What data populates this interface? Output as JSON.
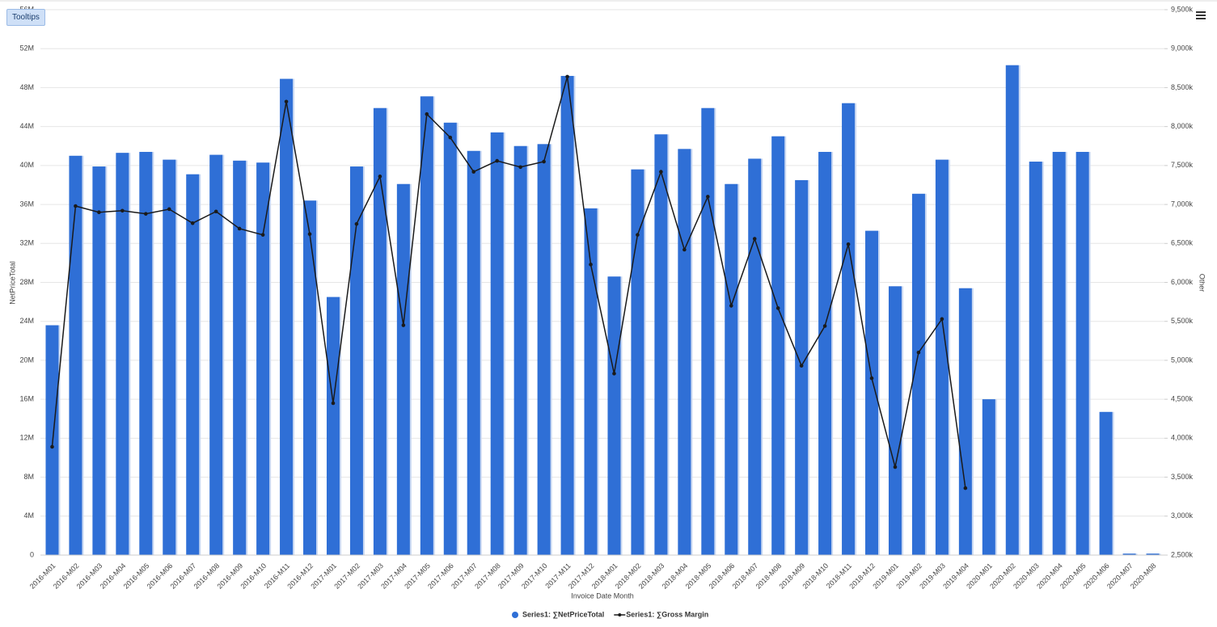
{
  "toolbar": {
    "button": "Tooltips"
  },
  "chart_data": {
    "type": "combo",
    "xlabel": "Invoice Date Month",
    "ylabel": "NetPriceTotal",
    "y2label": "Other",
    "categories": [
      "2016-M01",
      "2016-M02",
      "2016-M03",
      "2016-M04",
      "2016-M05",
      "2016-M06",
      "2016-M07",
      "2016-M08",
      "2016-M09",
      "2016-M10",
      "2016-M11",
      "2016-M12",
      "2017-M01",
      "2017-M02",
      "2017-M03",
      "2017-M04",
      "2017-M05",
      "2017-M06",
      "2017-M07",
      "2017-M08",
      "2017-M09",
      "2017-M10",
      "2017-M11",
      "2017-M12",
      "2018-M01",
      "2018-M02",
      "2018-M03",
      "2018-M04",
      "2018-M05",
      "2018-M06",
      "2018-M07",
      "2018-M08",
      "2018-M09",
      "2018-M10",
      "2018-M11",
      "2018-M12",
      "2019-M01",
      "2019-M02",
      "2019-M03",
      "2019-M04",
      "2020-M01",
      "2020-M02",
      "2020-M03",
      "2020-M04",
      "2020-M05",
      "2020-M06",
      "2020-M07",
      "2020-M08"
    ],
    "series": [
      {
        "name": "Series1: ∑NetPriceTotal",
        "type": "bar",
        "color": "#2f6fd6",
        "values": [
          23600000,
          41000000,
          39900000,
          41300000,
          41400000,
          40600000,
          39100000,
          41100000,
          40500000,
          40300000,
          48900000,
          36400000,
          26500000,
          39900000,
          45900000,
          38100000,
          47100000,
          44400000,
          41500000,
          43400000,
          42000000,
          42200000,
          49200000,
          35600000,
          28600000,
          39600000,
          43200000,
          41700000,
          45900000,
          38100000,
          40700000,
          43000000,
          38500000,
          41400000,
          46400000,
          33300000,
          27600000,
          37100000,
          40600000,
          27400000,
          16000000,
          50300000,
          40400000,
          41400000,
          41400000,
          14700000,
          150000,
          150000
        ]
      },
      {
        "name": "Series1: ∑Gross Margin",
        "type": "line",
        "axis": "y2",
        "color": "#1a1a1a",
        "values": [
          3890000,
          6980000,
          6900000,
          6920000,
          6880000,
          6940000,
          6760000,
          6910000,
          6690000,
          6610000,
          8320000,
          6620000,
          4450000,
          6750000,
          7360000,
          5450000,
          8160000,
          7860000,
          7420000,
          7560000,
          7480000,
          7550000,
          8640000,
          6230000,
          4830000,
          6610000,
          7420000,
          6420000,
          7100000,
          5700000,
          6560000,
          5670000,
          4930000,
          5440000,
          6490000,
          4770000,
          3630000,
          5100000,
          5530000,
          3360000,
          null,
          null,
          null,
          null,
          null,
          null,
          null,
          null
        ]
      }
    ],
    "ylim": [
      0,
      56000000
    ],
    "yticks": [
      0,
      {
        "value": 4000000,
        "label": "4M"
      },
      {
        "value": 8000000,
        "label": "8M"
      },
      {
        "value": 12000000,
        "label": "12M"
      },
      {
        "value": 16000000,
        "label": "16M"
      },
      {
        "value": 20000000,
        "label": "20M"
      },
      {
        "value": 24000000,
        "label": "24M"
      },
      {
        "value": 28000000,
        "label": "28M"
      },
      {
        "value": 32000000,
        "label": "32M"
      },
      {
        "value": 36000000,
        "label": "36M"
      },
      {
        "value": 40000000,
        "label": "40M"
      },
      {
        "value": 44000000,
        "label": "44M"
      },
      {
        "value": 48000000,
        "label": "48M"
      },
      {
        "value": 52000000,
        "label": "52M"
      },
      {
        "value": 56000000,
        "label": "56M"
      }
    ],
    "y2lim": [
      2500000,
      9500000
    ],
    "y2ticks": [
      {
        "value": 2500000,
        "label": "2,500k"
      },
      {
        "value": 3000000,
        "label": "3,000k"
      },
      {
        "value": 3500000,
        "label": "3,500k"
      },
      {
        "value": 4000000,
        "label": "4,000k"
      },
      {
        "value": 4500000,
        "label": "4,500k"
      },
      {
        "value": 5000000,
        "label": "5,000k"
      },
      {
        "value": 5500000,
        "label": "5,500k"
      },
      {
        "value": 6000000,
        "label": "6,000k"
      },
      {
        "value": 6500000,
        "label": "6,500k"
      },
      {
        "value": 7000000,
        "label": "7,000k"
      },
      {
        "value": 7500000,
        "label": "7,500k"
      },
      {
        "value": 8000000,
        "label": "8,000k"
      },
      {
        "value": 8500000,
        "label": "8,500k"
      },
      {
        "value": 9000000,
        "label": "9,000k"
      },
      {
        "value": 9500000,
        "label": "9,500k"
      }
    ],
    "grid": true
  }
}
